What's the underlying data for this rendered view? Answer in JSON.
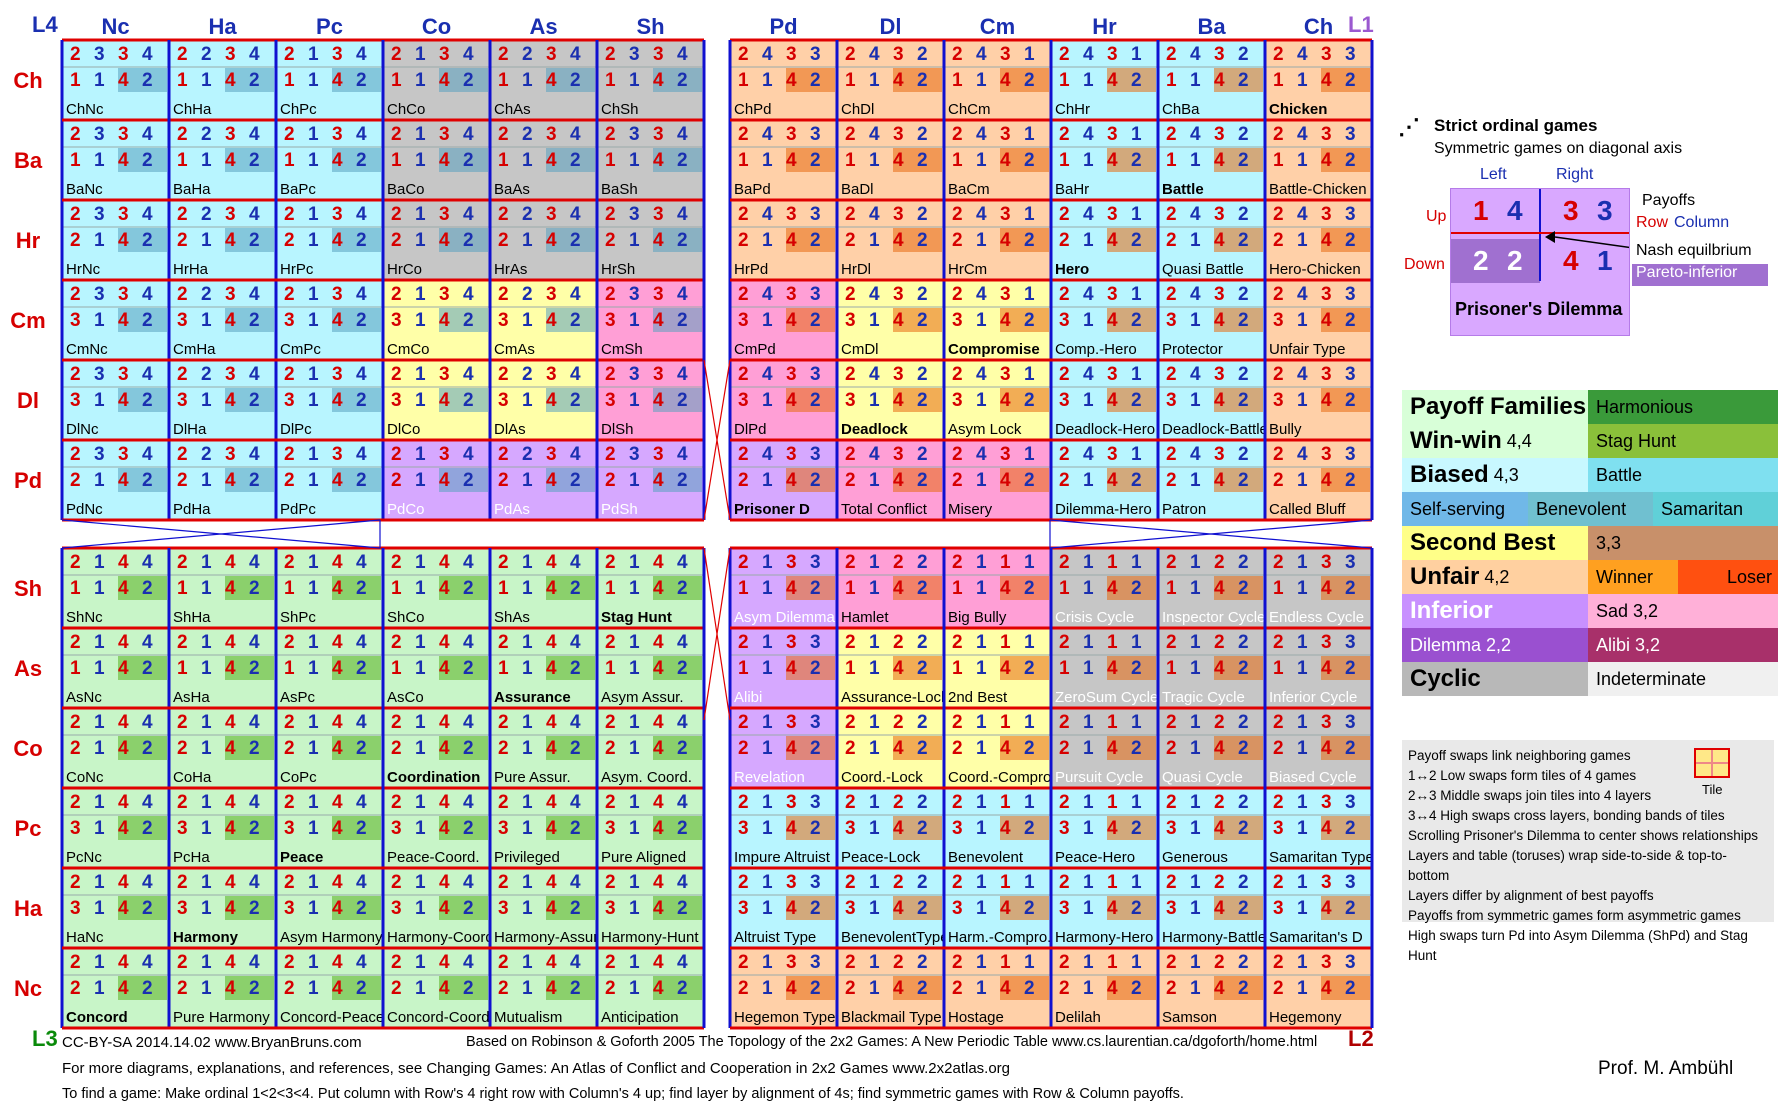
{
  "col_headers_left": [
    "Nc",
    "Ha",
    "Pc",
    "Co",
    "As",
    "Sh"
  ],
  "col_headers_right": [
    "Pd",
    "Dl",
    "Cm",
    "Hr",
    "Ba",
    "Ch"
  ],
  "row_headers_top": [
    "Ch",
    "Ba",
    "Hr",
    "Cm",
    "Dl",
    "Pd"
  ],
  "row_headers_bottom": [
    "Sh",
    "As",
    "Co",
    "Pc",
    "Ha",
    "Nc"
  ],
  "corners": {
    "tl": "L4",
    "tr": "L1",
    "bl": "L3",
    "br": "L2"
  },
  "games": [
    [
      "ChNc",
      "ChHa",
      "ChPc",
      "ChCo",
      "ChAs",
      "ChSh",
      "ChPd",
      "ChDl",
      "ChCm",
      "ChHr",
      "ChBa",
      "Chicken"
    ],
    [
      "BaNc",
      "BaHa",
      "BaPc",
      "BaCo",
      "BaAs",
      "BaSh",
      "BaPd",
      "BaDl",
      "BaCm",
      "BaHr",
      "Battle",
      "Battle-Chicken"
    ],
    [
      "HrNc",
      "HrHa",
      "HrPc",
      "HrCo",
      "HrAs",
      "HrSh",
      "HrPd",
      "HrDl",
      "HrCm",
      "Hero",
      "Quasi Battle",
      "Hero-Chicken"
    ],
    [
      "CmNc",
      "CmHa",
      "CmPc",
      "CmCo",
      "CmAs",
      "CmSh",
      "CmPd",
      "CmDl",
      "Compromise",
      "Comp.-Hero",
      "Protector",
      "Unfair Type"
    ],
    [
      "DlNc",
      "DlHa",
      "DlPc",
      "DlCo",
      "DlAs",
      "DlSh",
      "DlPd",
      "Deadlock",
      "Asym Lock",
      "Deadlock-Hero",
      "Deadlock-Battle",
      "Bully"
    ],
    [
      "PdNc",
      "PdHa",
      "PdPc",
      "PdCo",
      "PdAs",
      "PdSh",
      "Prisoner D",
      "Total Conflict",
      "Misery",
      "Dilemma-Hero",
      "Patron",
      "Called Bluff"
    ],
    [
      "ShNc",
      "ShHa",
      "ShPc",
      "ShCo",
      "ShAs",
      "Stag Hunt",
      "Asym Dilemma",
      "Hamlet",
      "Big Bully",
      "Crisis Cycle",
      "Inspector Cycle",
      "Endless Cycle"
    ],
    [
      "AsNc",
      "AsHa",
      "AsPc",
      "AsCo",
      "Assurance",
      "Asym Assur.",
      "Alibi",
      "Assurance-Lock",
      "2nd Best",
      "ZeroSum Cycle",
      "Tragic Cycle",
      "Inferior Cycle"
    ],
    [
      "CoNc",
      "CoHa",
      "CoPc",
      "Coordination",
      "Pure Assur.",
      "Asym. Coord.",
      "Revelation",
      "Coord.-Lock",
      "Coord.-Compro",
      "Pursuit Cycle",
      "Quasi Cycle",
      "Biased Cycle"
    ],
    [
      "PcNc",
      "PcHa",
      "Peace",
      "Peace-Coord.",
      "Privileged",
      "Pure Aligned",
      "Impure Altruist",
      "Peace-Lock",
      "Benevolent",
      "Peace-Hero",
      "Generous",
      "Samaritan Type"
    ],
    [
      "HaNc",
      "Harmony",
      "Asym Harmony",
      "Harmony-Coord",
      "Harmony-Assur",
      "Harmony-Hunt",
      "Altruist Type",
      "BenevolentType",
      "Harm.-Compro.",
      "Harmony-Hero",
      "Harmony-Battle",
      "Samaritan's D"
    ],
    [
      "Concord",
      "Pure Harmony",
      "Concord-Peace",
      "Concord-Coord.",
      "Mutualism",
      "Anticipation",
      "Hegemon Type",
      "Blackmail Type",
      "Hostage",
      "Delilah",
      "Samson",
      "Hegemony"
    ]
  ],
  "col_payoffs_top": [
    [
      2,
      3,
      3,
      4
    ],
    [
      2,
      2,
      3,
      4
    ],
    [
      2,
      1,
      3,
      4
    ],
    [
      2,
      1,
      3,
      4
    ],
    [
      2,
      2,
      3,
      4
    ],
    [
      2,
      3,
      3,
      4
    ],
    [
      2,
      4,
      3,
      3
    ],
    [
      2,
      4,
      3,
      2
    ],
    [
      2,
      4,
      3,
      1
    ],
    [
      2,
      4,
      3,
      1
    ],
    [
      2,
      4,
      3,
      2
    ],
    [
      2,
      4,
      3,
      3
    ]
  ],
  "row_payoffs_top": [
    [
      1,
      1,
      4,
      2
    ],
    [
      1,
      1,
      4,
      2
    ],
    [
      2,
      1,
      4,
      2
    ],
    [
      3,
      1,
      4,
      2
    ],
    [
      3,
      1,
      4,
      2
    ],
    [
      2,
      1,
      4,
      2
    ]
  ],
  "legend": {
    "title1": "Strict ordinal games",
    "title2": "Symmetric games on diagonal axis",
    "left": "Left",
    "right": "Right",
    "up": "Up",
    "down": "Down",
    "payoffs": "Payoffs",
    "row": "Row",
    "column": "Column",
    "nash": "Nash equilbrium",
    "pareto": "Pareto-inferior",
    "pd_name": "Prisoner's Dilemma",
    "pd_vals": [
      "1",
      "4",
      "3",
      "3",
      "2",
      "2",
      "4",
      "1"
    ]
  },
  "families": {
    "title": "Payoff Families",
    "harmonious": "Harmonious",
    "winwin": "Win-win",
    "winwin_v": "4,4",
    "stag": "Stag Hunt",
    "biased": "Biased",
    "biased_v": "4,3",
    "battle": "Battle",
    "selfserving": "Self-serving",
    "benevolent": "Benevolent",
    "samaritan": "Samaritan",
    "second": "Second Best",
    "second_v": "3,3",
    "unfair": "Unfair",
    "unfair_v": "4,2",
    "winner": "Winner",
    "loser": "Loser",
    "inferior": "Inferior",
    "sad": "Sad 3,2",
    "dilemma": "Dilemma  2,2",
    "alibi": "Alibi  3,2",
    "cyclic": "Cyclic",
    "indeterminate": "Indeterminate"
  },
  "notes": [
    "Payoff swaps link neighboring games",
    "1↔2  Low swaps form tiles of 4 games",
    "2↔3  Middle swaps join tiles into 4 layers",
    "3↔4  High swaps cross layers, bonding bands of tiles",
    "Scrolling Prisoner's Dilemma to center shows relationships",
    "Layers and table (toruses) wrap side-to-side & top-to-bottom",
    "Layers differ by alignment of best payoffs",
    "Payoffs from symmetric games form asymmetric games",
    "High swaps turn Pd into Asym Dilemma (ShPd) and Stag Hunt"
  ],
  "tile_label": "Tile",
  "footer": {
    "line1a": "CC-BY-SA 2014.14.02   www.BryanBruns.com",
    "line1b": "Based on Robinson & Goforth 2005 The Topology of the 2x2 Games: A New Periodic Table  www.cs.laurentian.ca/dgoforth/home.html",
    "line2": "For more diagrams, explanations, and references, see Changing Games: An Atlas of Conflict and Cooperation in 2x2 Games  www.2x2atlas.org",
    "line3": "To find a game: Make ordinal 1<2<3<4. Put column with Row's 4 right row with Column's 4 up; find layer by alignment of 4s; find symmetric games with Row & Column payoffs.",
    "author": "Prof. M. Ambühl"
  },
  "colors": {
    "orange": "#ffd0a8",
    "cyan": "#b8f5ff",
    "grey": "#c6c6c6",
    "yellow": "#ffffa8",
    "pink": "#ff9fd6",
    "purple": "#d6a8ff",
    "green": "#c8f5c8",
    "red_line": "#e00000",
    "blue_line": "#1010d0"
  }
}
